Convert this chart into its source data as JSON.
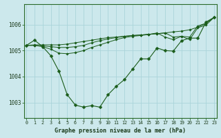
{
  "title": "Graphe pression niveau de la mer (hPa)",
  "bg_color": "#cce8ec",
  "grid_color": "#aad4da",
  "line_color": "#1a5c1a",
  "xlim_min": -0.3,
  "xlim_max": 23.3,
  "ylim_min": 1002.4,
  "ylim_max": 1006.8,
  "yticks": [
    1003,
    1004,
    1005,
    1006
  ],
  "xticks": [
    0,
    1,
    2,
    3,
    4,
    5,
    6,
    7,
    8,
    9,
    10,
    11,
    12,
    13,
    14,
    15,
    16,
    17,
    18,
    19,
    20,
    21,
    22,
    23
  ],
  "series_main": [
    1005.2,
    1005.4,
    1005.15,
    1004.8,
    1004.2,
    1003.3,
    1002.9,
    1002.82,
    1002.88,
    1002.82,
    1003.3,
    1003.62,
    1003.88,
    1004.28,
    1004.68,
    1004.68,
    1005.1,
    1005.0,
    1004.98,
    1005.38,
    1005.48,
    1005.48,
    1006.1,
    1006.28
  ],
  "series_line1": [
    1005.2,
    1005.22,
    1005.22,
    1005.22,
    1005.22,
    1005.25,
    1005.3,
    1005.35,
    1005.4,
    1005.45,
    1005.5,
    1005.52,
    1005.55,
    1005.58,
    1005.6,
    1005.63,
    1005.65,
    1005.68,
    1005.72,
    1005.75,
    1005.8,
    1005.9,
    1006.05,
    1006.28
  ],
  "series_line2": [
    1005.2,
    1005.2,
    1005.18,
    1005.15,
    1005.12,
    1005.12,
    1005.15,
    1005.2,
    1005.3,
    1005.38,
    1005.45,
    1005.5,
    1005.55,
    1005.58,
    1005.6,
    1005.62,
    1005.65,
    1005.68,
    1005.52,
    1005.55,
    1005.52,
    1005.95,
    1006.05,
    1006.28
  ],
  "series_line3": [
    1005.2,
    1005.2,
    1005.15,
    1005.05,
    1004.9,
    1004.88,
    1004.92,
    1005.0,
    1005.12,
    1005.22,
    1005.32,
    1005.42,
    1005.5,
    1005.55,
    1005.58,
    1005.62,
    1005.68,
    1005.52,
    1005.42,
    1005.55,
    1005.42,
    1005.88,
    1005.98,
    1006.28
  ]
}
